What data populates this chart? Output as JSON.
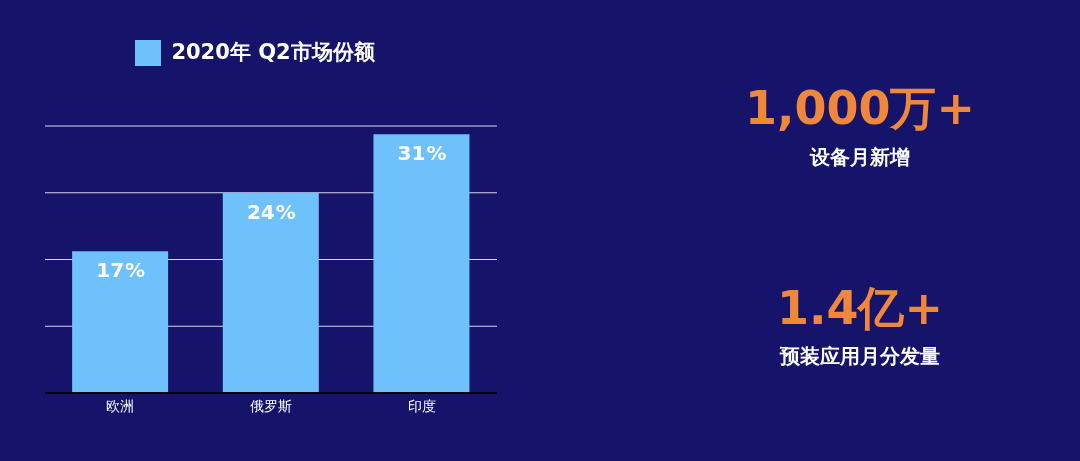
{
  "chart_data": [
    {
      "type": "bar",
      "categories": [
        "欧洲",
        "俄罗斯",
        "印度"
      ],
      "series": [
        {
          "name": "2020年 Q2市场份额",
          "color": "#6ec1fb",
          "values": [
            17,
            24,
            31
          ]
        }
      ],
      "value_labels": [
        "17%",
        "24%",
        "31%"
      ],
      "data_labels": true,
      "grid": "y",
      "legend": "top"
    },
    {
      "type": "other",
      "annotations": [
        "1,000万+",
        "设备月新增",
        "1.4亿+",
        "预装应用月分发量"
      ]
    }
  ]
}
